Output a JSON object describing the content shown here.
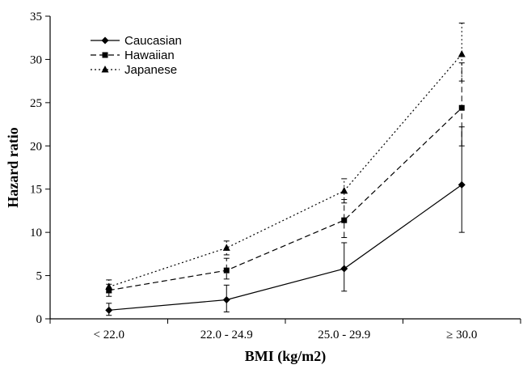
{
  "chart_data": {
    "type": "line",
    "title": "",
    "xlabel": "BMI (kg/m2)",
    "ylabel": "Hazard ratio",
    "categories": [
      "< 22.0",
      "22.0 - 24.9",
      "25.0 - 29.9",
      "≥ 30.0"
    ],
    "ylim": [
      0,
      35
    ],
    "yticks": [
      0,
      5,
      10,
      15,
      20,
      25,
      30,
      35
    ],
    "grid": false,
    "legend_position": "top-left",
    "series": [
      {
        "name": "Caucasian",
        "line_style": "solid",
        "marker": "diamond",
        "values": [
          1.0,
          2.2,
          5.8,
          15.5
        ],
        "error_low": [
          0.4,
          0.8,
          3.2,
          10.0
        ],
        "error_high": [
          1.8,
          3.9,
          8.8,
          22.2
        ]
      },
      {
        "name": "Hawaiian",
        "line_style": "dashed",
        "marker": "square",
        "values": [
          3.3,
          5.6,
          11.4,
          24.4
        ],
        "error_low": [
          2.6,
          4.6,
          9.4,
          20.0
        ],
        "error_high": [
          4.0,
          7.0,
          13.8,
          29.6
        ]
      },
      {
        "name": "Japanese",
        "line_style": "dotted",
        "marker": "triangle",
        "values": [
          3.7,
          8.2,
          14.8,
          30.6
        ],
        "error_low": [
          3.0,
          7.4,
          13.4,
          27.5
        ],
        "error_high": [
          4.5,
          9.0,
          16.2,
          34.2
        ]
      }
    ]
  }
}
